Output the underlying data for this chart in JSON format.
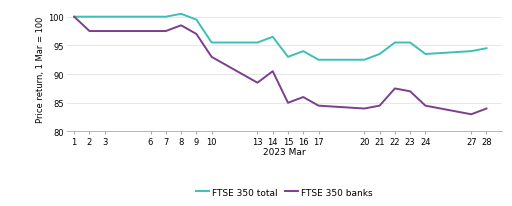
{
  "x_labels": [
    "1",
    "2",
    "3",
    "6",
    "7",
    "8",
    "9",
    "10",
    "13",
    "14",
    "15",
    "16",
    "17",
    "20",
    "21",
    "22",
    "23",
    "24",
    "27",
    "28"
  ],
  "x_positions": [
    1,
    2,
    3,
    6,
    7,
    8,
    9,
    10,
    13,
    14,
    15,
    16,
    17,
    20,
    21,
    22,
    23,
    24,
    27,
    28
  ],
  "ftse_total": [
    100,
    100,
    100,
    100,
    100,
    100.5,
    99.5,
    95.5,
    95.5,
    96.5,
    93.0,
    94.0,
    92.5,
    92.5,
    93.5,
    95.5,
    95.5,
    93.5,
    94.0,
    94.5
  ],
  "ftse_banks": [
    100,
    97.5,
    97.5,
    97.5,
    97.5,
    98.5,
    97.0,
    93.0,
    88.5,
    90.5,
    85.0,
    86.0,
    84.5,
    84.0,
    84.5,
    87.5,
    87.0,
    84.5,
    83.0,
    84.0
  ],
  "ftse_total_color": "#3dbfb8",
  "ftse_banks_color": "#7b3f8c",
  "ylabel": "Price return, 1 Mar = 100",
  "xlabel": "2023 Mar",
  "ylim": [
    80,
    102
  ],
  "yticks": [
    80,
    85,
    90,
    95,
    100
  ],
  "legend_ftse_total": "FTSE 350 total",
  "legend_ftse_banks": "FTSE 350 banks",
  "background_color": "#ffffff",
  "linewidth": 1.4
}
